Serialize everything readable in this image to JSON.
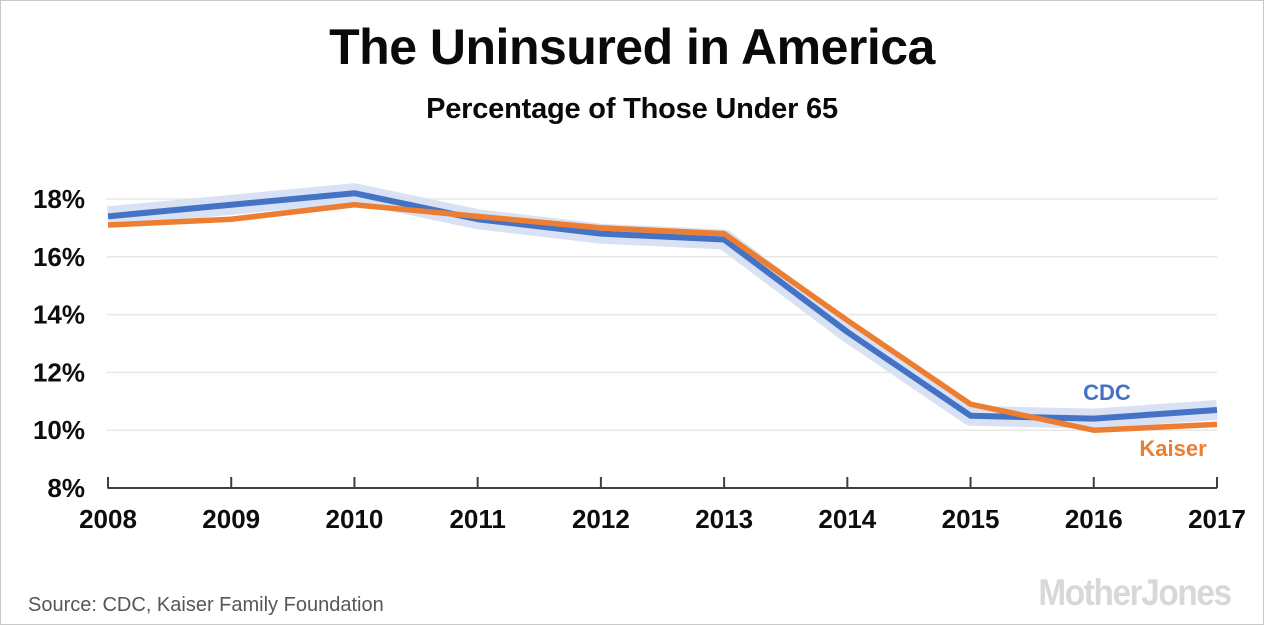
{
  "header": {
    "title": "The Uninsured in America",
    "subtitle": "Percentage of Those Under 65"
  },
  "chart_data": {
    "type": "line",
    "title": "The Uninsured in America",
    "subtitle": "Percentage of Those Under 65",
    "x": [
      2008,
      2009,
      2010,
      2011,
      2012,
      2013,
      2014,
      2015,
      2016,
      2017
    ],
    "series": [
      {
        "name": "CDC",
        "color": "#4472C4",
        "values": [
          17.4,
          17.8,
          18.2,
          17.3,
          16.8,
          16.6,
          13.4,
          10.5,
          10.4,
          10.7
        ],
        "confidence_band": true,
        "band_color": "#D9E2F4"
      },
      {
        "name": "Kaiser",
        "color": "#ED7D31",
        "values": [
          17.1,
          17.3,
          17.8,
          17.4,
          17.0,
          16.8,
          13.8,
          10.9,
          10.0,
          10.2
        ]
      }
    ],
    "ylim": [
      8,
      19
    ],
    "yticks": [
      8,
      10,
      12,
      14,
      16,
      18
    ],
    "ytick_format": "{v}%",
    "grid": "horizontal",
    "legend": "inline-end-labels",
    "axis_color": "#3F3F3F",
    "gridline_color": "#E8E8E8",
    "tick_label_color": "#0D0D0D"
  },
  "footer": {
    "source": "Source: CDC, Kaiser Family Foundation",
    "logo": "MotherJones"
  }
}
